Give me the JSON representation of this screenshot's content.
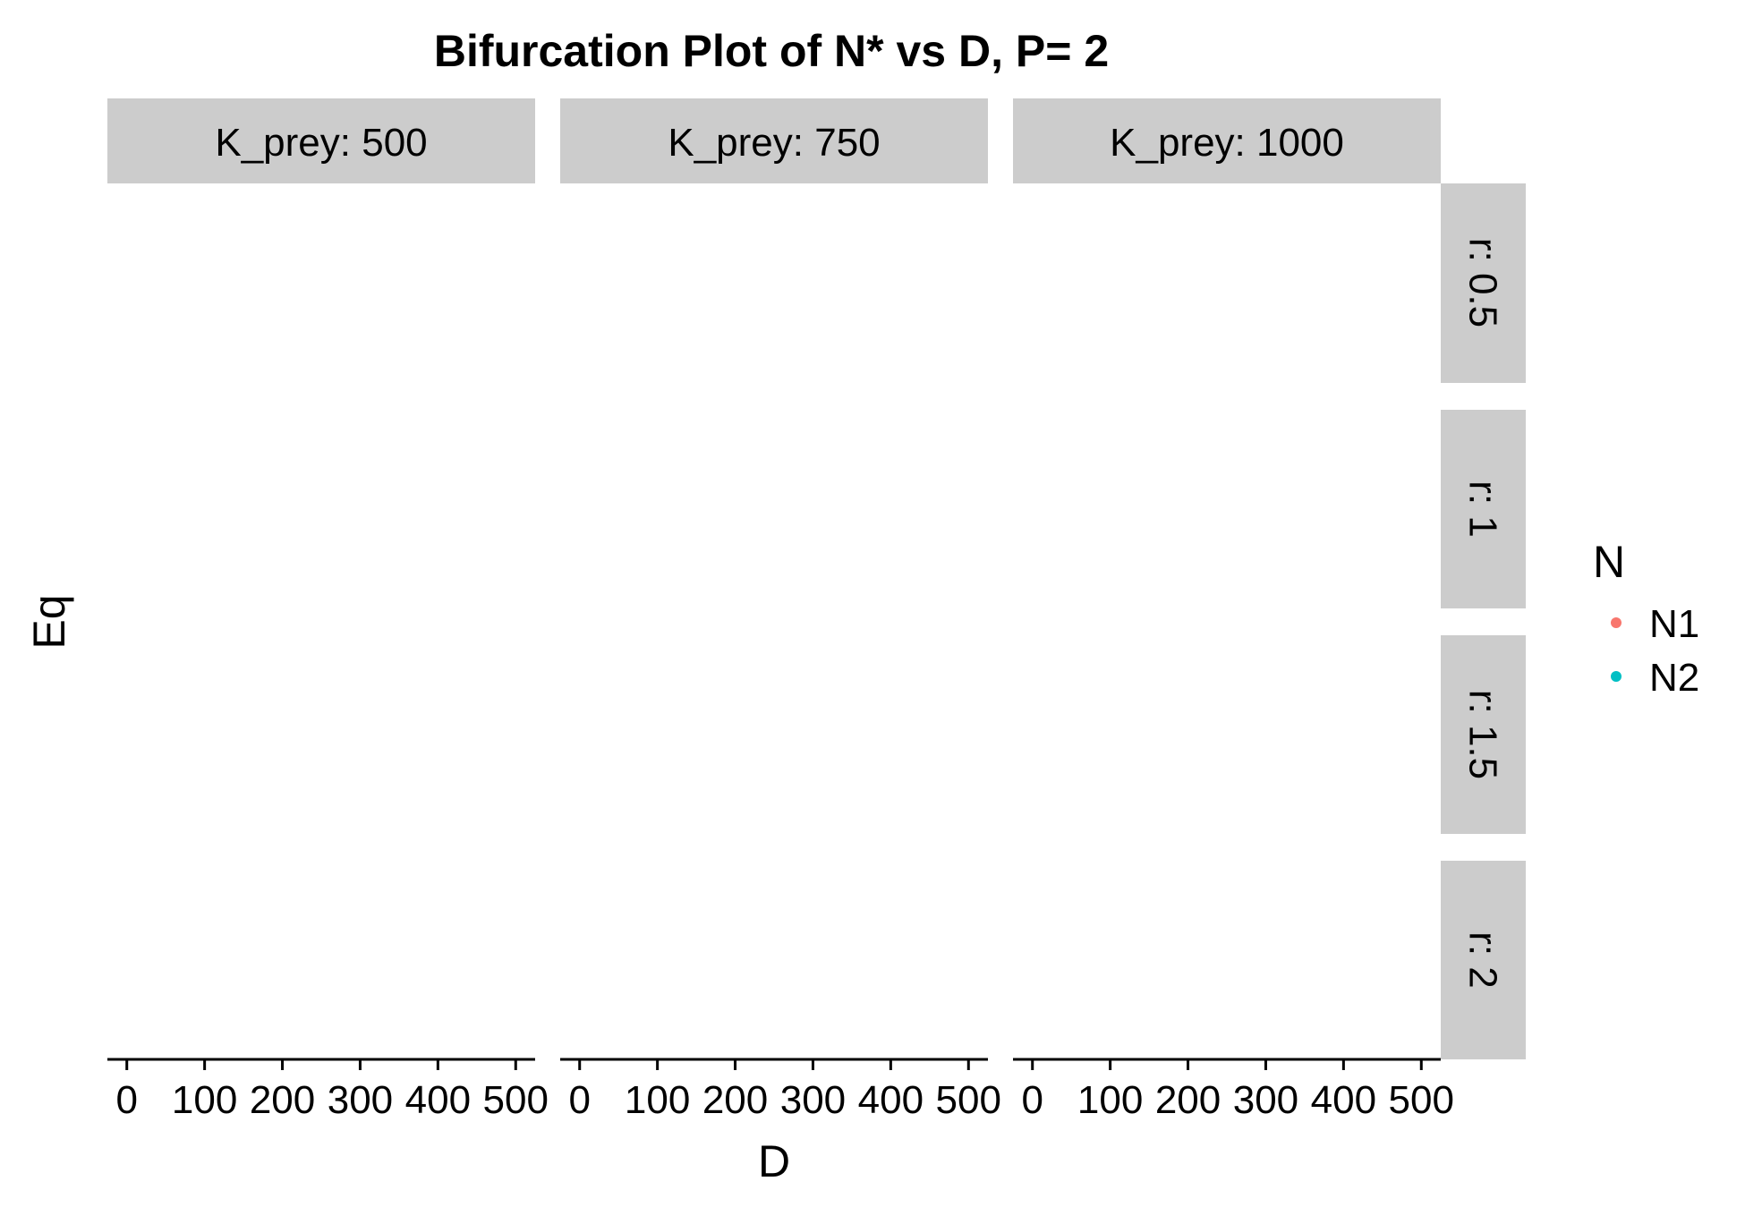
{
  "chart_data": {
    "type": "scatter",
    "title": "Bifurcation Plot of N* vs D, P= 2",
    "xlabel": "D",
    "ylabel": "Eq",
    "facet_cols": {
      "labels": [
        "K_prey: 500",
        "K_prey: 750",
        "K_prey: 1000"
      ],
      "values": [
        500,
        750,
        1000
      ]
    },
    "facet_rows": {
      "labels": [
        "r: 0.5",
        "r: 1",
        "r: 1.5",
        "r: 2"
      ],
      "values": [
        0.5,
        1,
        1.5,
        2
      ]
    },
    "x_ticks": [
      0,
      100,
      200,
      300,
      400,
      500
    ],
    "x_tick_labels": [
      "0",
      "100",
      "200",
      "300",
      "400",
      "500"
    ],
    "xlim": [
      -25,
      525
    ],
    "legend": {
      "title": "N",
      "position": "right",
      "entries": [
        {
          "name": "N1",
          "color": "#F8766D"
        },
        {
          "name": "N2",
          "color": "#00BFC4"
        }
      ]
    },
    "series": [
      {
        "name": "N1",
        "color": "#F8766D",
        "points": []
      },
      {
        "name": "N2",
        "color": "#00BFC4",
        "points": []
      }
    ],
    "strip_fill": "#CCCCCC",
    "axis_color": "#000000",
    "grid": false
  }
}
